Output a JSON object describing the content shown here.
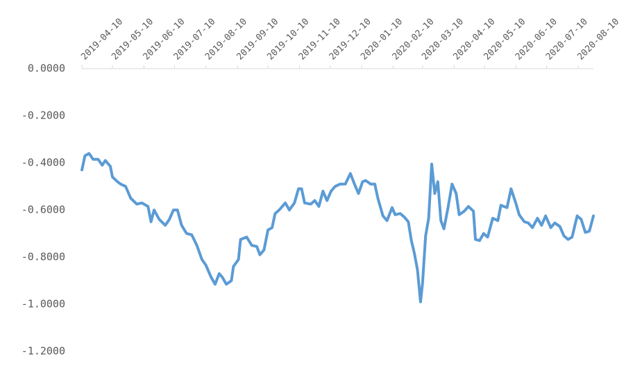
{
  "chart_data": {
    "type": "line",
    "x": [
      "2019-04-10",
      "2019-04-13",
      "2019-04-17",
      "2019-04-21",
      "2019-04-26",
      "2019-04-30",
      "2019-05-03",
      "2019-05-08",
      "2019-05-10",
      "2019-05-15",
      "2019-05-18",
      "2019-05-23",
      "2019-05-28",
      "2019-06-03",
      "2019-06-08",
      "2019-06-14",
      "2019-06-17",
      "2019-06-20",
      "2019-06-25",
      "2019-07-01",
      "2019-07-05",
      "2019-07-09",
      "2019-07-13",
      "2019-07-17",
      "2019-07-22",
      "2019-07-27",
      "2019-08-01",
      "2019-08-06",
      "2019-08-10",
      "2019-08-15",
      "2019-08-19",
      "2019-08-23",
      "2019-08-26",
      "2019-08-30",
      "2019-09-04",
      "2019-09-06",
      "2019-09-11",
      "2019-09-13",
      "2019-09-19",
      "2019-09-24",
      "2019-09-29",
      "2019-10-02",
      "2019-10-06",
      "2019-10-10",
      "2019-10-14",
      "2019-10-17",
      "2019-10-21",
      "2019-10-27",
      "2019-10-31",
      "2019-11-05",
      "2019-11-09",
      "2019-11-12",
      "2019-11-15",
      "2019-11-21",
      "2019-11-25",
      "2019-11-29",
      "2019-12-03",
      "2019-12-07",
      "2019-12-11",
      "2019-12-15",
      "2019-12-20",
      "2019-12-25",
      "2019-12-30",
      "2020-01-03",
      "2020-01-07",
      "2020-01-11",
      "2020-01-14",
      "2020-01-19",
      "2020-01-23",
      "2020-01-26",
      "2020-01-31",
      "2020-02-04",
      "2020-02-09",
      "2020-02-12",
      "2020-02-17",
      "2020-02-21",
      "2020-02-25",
      "2020-02-28",
      "2020-03-02",
      "2020-03-05",
      "2020-03-08",
      "2020-03-10",
      "2020-03-13",
      "2020-03-16",
      "2020-03-19",
      "2020-03-22",
      "2020-03-25",
      "2020-03-28",
      "2020-03-31",
      "2020-04-04",
      "2020-04-08",
      "2020-04-12",
      "2020-04-15",
      "2020-04-20",
      "2020-04-24",
      "2020-04-29",
      "2020-05-01",
      "2020-05-05",
      "2020-05-09",
      "2020-05-13",
      "2020-05-18",
      "2020-05-23",
      "2020-05-26",
      "2020-06-01",
      "2020-06-05",
      "2020-06-10",
      "2020-06-13",
      "2020-06-18",
      "2020-06-22",
      "2020-06-26",
      "2020-07-01",
      "2020-07-05",
      "2020-07-09",
      "2020-07-14",
      "2020-07-18",
      "2020-07-23",
      "2020-07-27",
      "2020-07-31",
      "2020-08-04",
      "2020-08-09",
      "2020-08-13",
      "2020-08-17",
      "2020-08-21",
      "2020-08-25"
    ],
    "series": [
      {
        "color": "#5b9bd5",
        "values": [
          -0.43,
          -0.37,
          -0.36,
          -0.385,
          -0.385,
          -0.41,
          -0.39,
          -0.415,
          -0.46,
          -0.48,
          -0.49,
          -0.5,
          -0.55,
          -0.575,
          -0.57,
          -0.585,
          -0.65,
          -0.6,
          -0.64,
          -0.665,
          -0.64,
          -0.6,
          -0.6,
          -0.665,
          -0.7,
          -0.705,
          -0.75,
          -0.81,
          -0.835,
          -0.885,
          -0.915,
          -0.87,
          -0.885,
          -0.915,
          -0.9,
          -0.84,
          -0.81,
          -0.725,
          -0.715,
          -0.75,
          -0.755,
          -0.79,
          -0.77,
          -0.685,
          -0.675,
          -0.615,
          -0.6,
          -0.57,
          -0.6,
          -0.57,
          -0.51,
          -0.51,
          -0.57,
          -0.575,
          -0.56,
          -0.585,
          -0.52,
          -0.56,
          -0.52,
          -0.5,
          -0.49,
          -0.49,
          -0.445,
          -0.49,
          -0.53,
          -0.48,
          -0.475,
          -0.49,
          -0.49,
          -0.55,
          -0.625,
          -0.645,
          -0.59,
          -0.62,
          -0.615,
          -0.63,
          -0.65,
          -0.73,
          -0.785,
          -0.855,
          -0.99,
          -0.91,
          -0.71,
          -0.635,
          -0.405,
          -0.53,
          -0.48,
          -0.645,
          -0.68,
          -0.59,
          -0.49,
          -0.53,
          -0.62,
          -0.605,
          -0.585,
          -0.605,
          -0.725,
          -0.73,
          -0.7,
          -0.715,
          -0.635,
          -0.645,
          -0.58,
          -0.59,
          -0.51,
          -0.575,
          -0.62,
          -0.65,
          -0.655,
          -0.675,
          -0.635,
          -0.665,
          -0.625,
          -0.675,
          -0.655,
          -0.67,
          -0.71,
          -0.725,
          -0.715,
          -0.625,
          -0.64,
          -0.695,
          -0.69,
          -0.625
        ]
      }
    ],
    "xlim": [
      "2019-04-10",
      "2020-08-25"
    ],
    "xticks": [
      "2019-04-10",
      "2019-05-10",
      "2019-06-10",
      "2019-07-10",
      "2019-08-10",
      "2019-09-10",
      "2019-10-10",
      "2019-11-10",
      "2019-12-10",
      "2020-01-10",
      "2020-02-10",
      "2020-03-10",
      "2020-04-10",
      "2020-05-10",
      "2020-06-10",
      "2020-07-10",
      "2020-08-10"
    ],
    "ylim": [
      -1.3,
      0
    ],
    "yticks": [
      {
        "value": 0,
        "label": "0.0000"
      },
      {
        "value": -0.2,
        "label": "-0.2000"
      },
      {
        "value": -0.4,
        "label": "-0.4000"
      },
      {
        "value": -0.6,
        "label": "-0.6000"
      },
      {
        "value": -0.8,
        "label": "-0.8000"
      },
      {
        "value": -1.0,
        "label": "-1.0000"
      },
      {
        "value": -1.2,
        "label": "-1.2000"
      }
    ],
    "grid": false
  }
}
